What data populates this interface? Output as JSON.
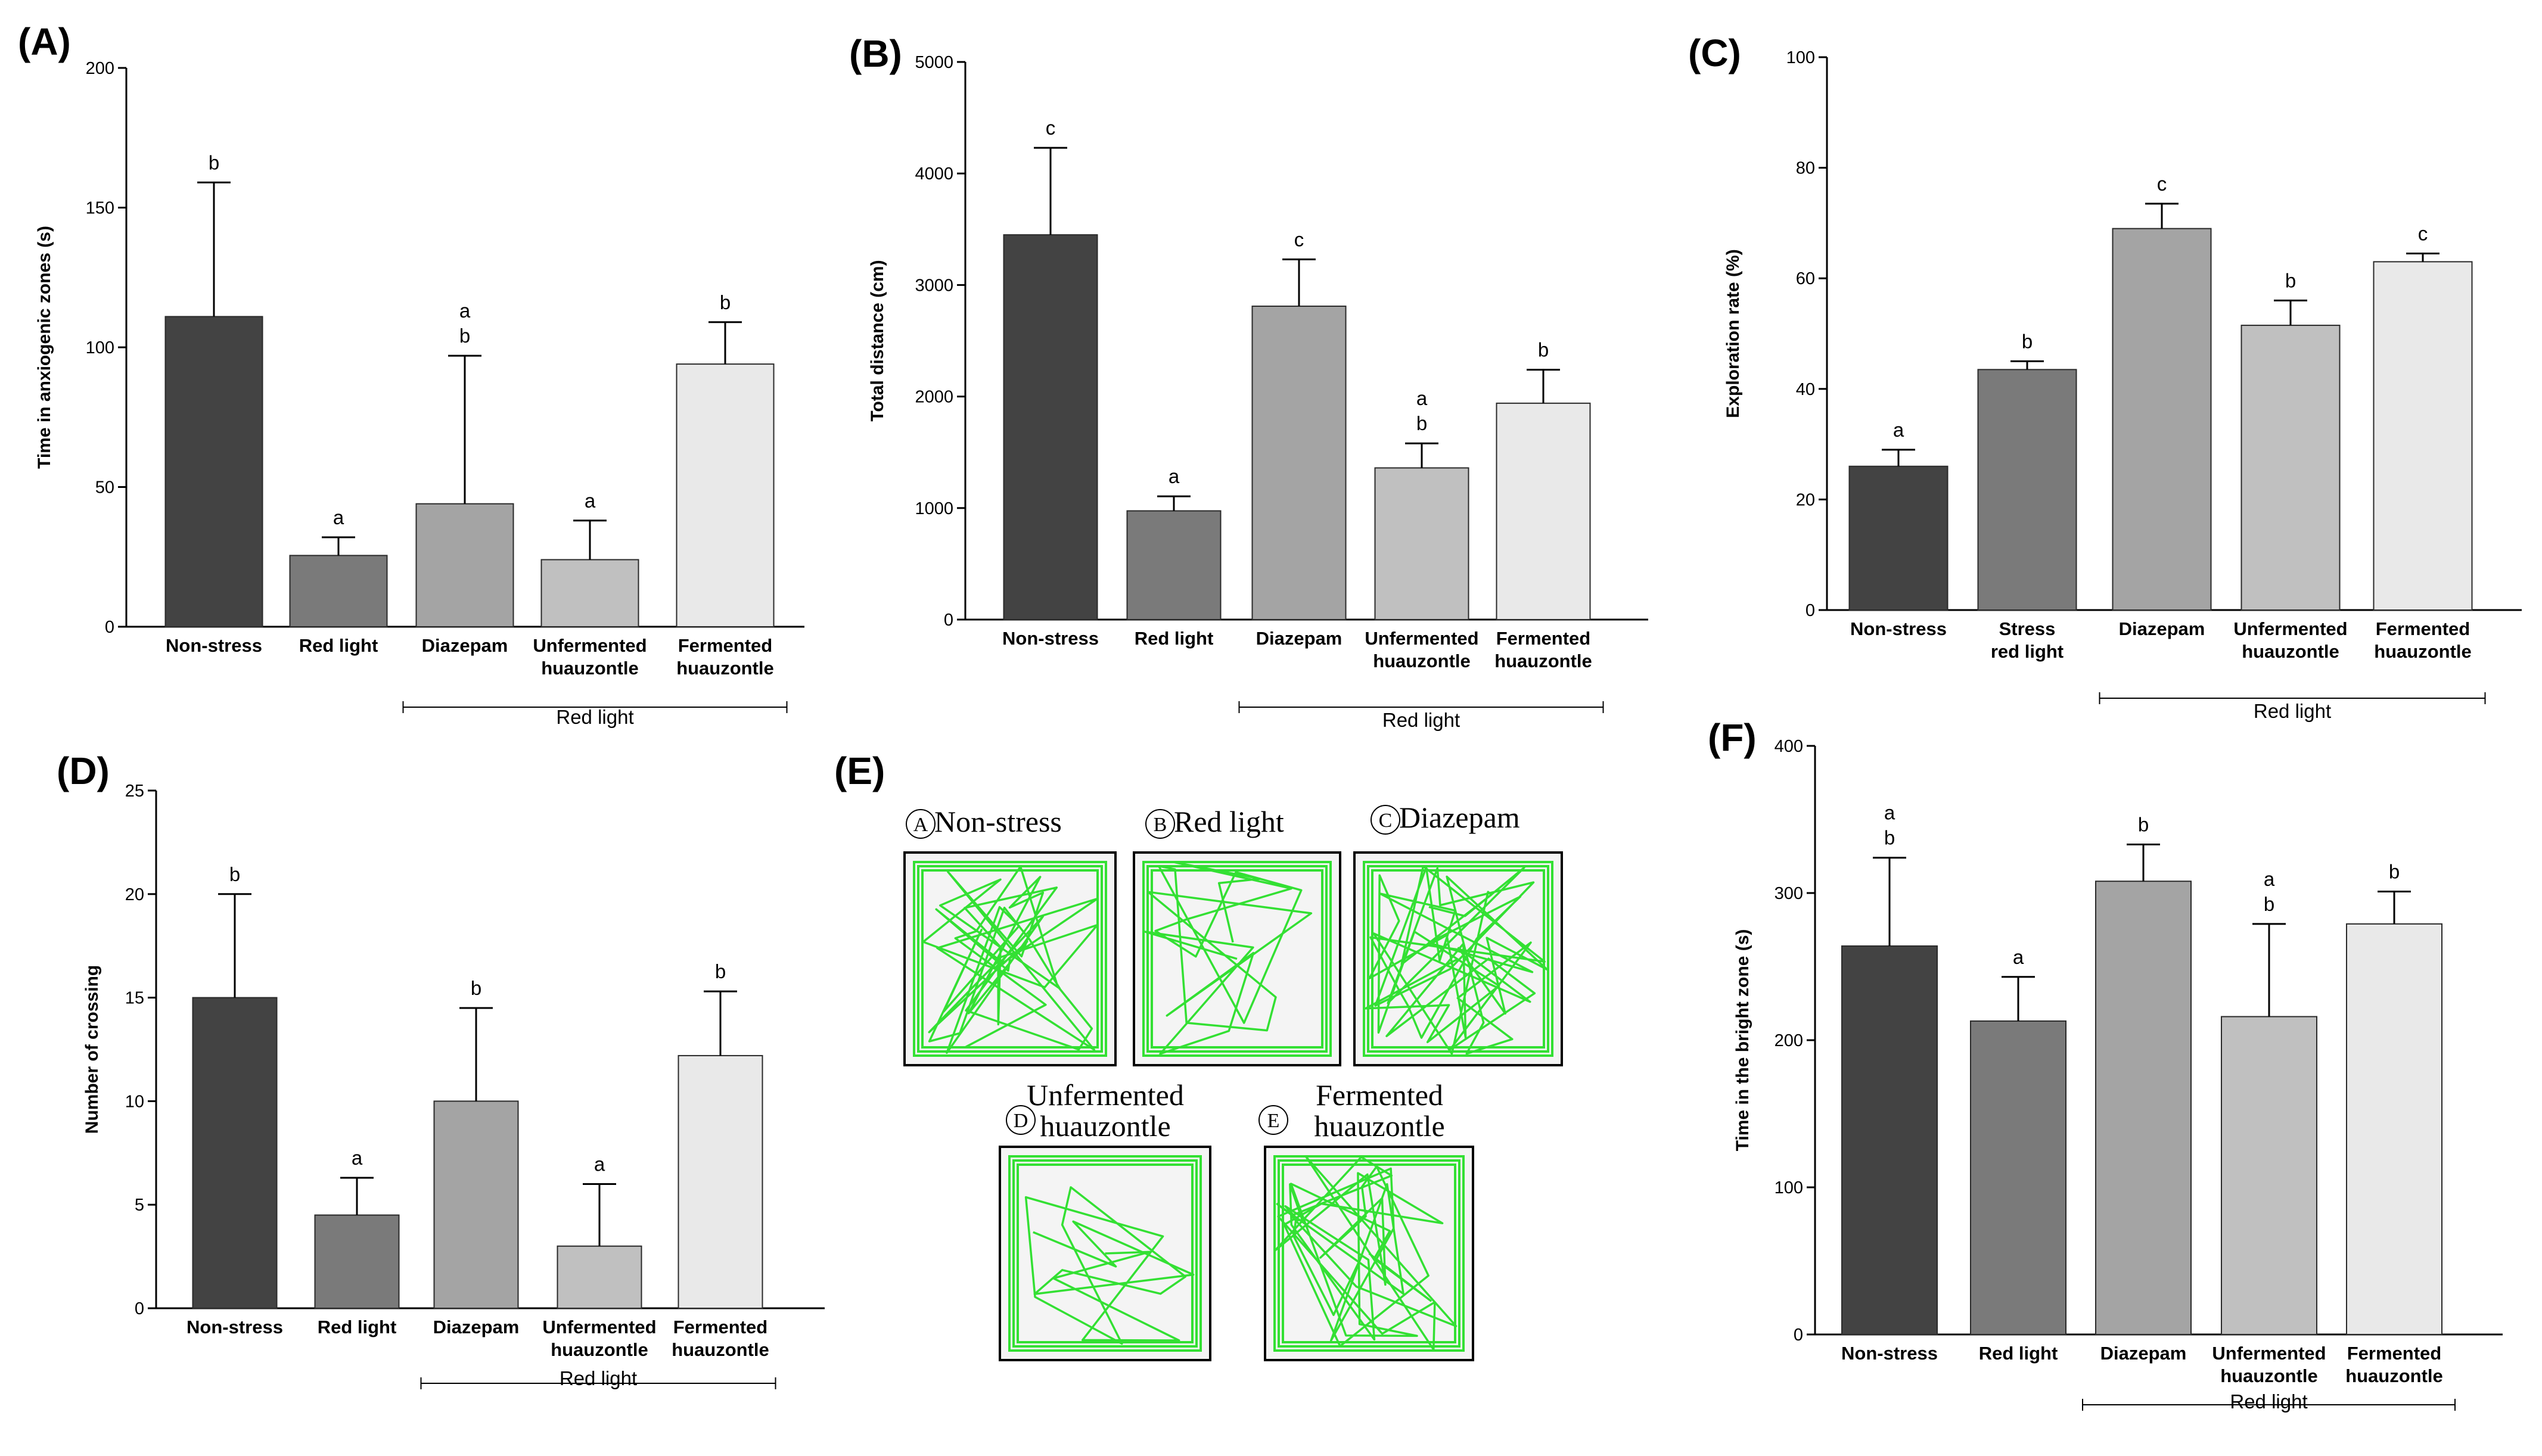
{
  "figure": {
    "colors": {
      "Non-stress": "#434343",
      "Red light": "#7a7a7a",
      "Stress red light": "#7a7a7a",
      "Diazepam": "#a4a4a4",
      "Unfermented huauzontle": "#c0c0c0",
      "Fermented huauzontle": "#e9e9e9",
      "track": "#33e033",
      "axis": "#000000"
    }
  },
  "chart_data": [
    {
      "id": "A",
      "panel_label": "(A)",
      "type": "bar",
      "ylabel": "Time in anxiogenic zones (s)",
      "ylim": [
        0,
        200
      ],
      "yticks": [
        0,
        50,
        100,
        150,
        200
      ],
      "categories": [
        [
          "Non-stress"
        ],
        [
          "Red light"
        ],
        [
          "Diazepam"
        ],
        [
          "Unfermented",
          "huauzontle"
        ],
        [
          "Fermented",
          "huauzontle"
        ]
      ],
      "series_keys": [
        "Non-stress",
        "Red light",
        "Diazepam",
        "Unfermented huauzontle",
        "Fermented huauzontle"
      ],
      "values": [
        111,
        25.5,
        44,
        24,
        94
      ],
      "errors": [
        48,
        6.5,
        53,
        14,
        15
      ],
      "letters": [
        [
          "b"
        ],
        [
          "a"
        ],
        [
          "a",
          "b"
        ],
        [
          "a"
        ],
        [
          "b"
        ]
      ],
      "group_label": "Red light",
      "group_span": [
        2,
        4
      ]
    },
    {
      "id": "B",
      "panel_label": "(B)",
      "type": "bar",
      "ylabel": "Total distance (cm)",
      "ylim": [
        0,
        5000
      ],
      "yticks": [
        0,
        1000,
        2000,
        3000,
        4000,
        5000
      ],
      "categories": [
        [
          "Non-stress"
        ],
        [
          "Red light"
        ],
        [
          "Diazepam"
        ],
        [
          "Unfermented",
          "huauzontle"
        ],
        [
          "Fermented",
          "huauzontle"
        ]
      ],
      "series_keys": [
        "Non-stress",
        "Red light",
        "Diazepam",
        "Unfermented huauzontle",
        "Fermented huauzontle"
      ],
      "values": [
        3450,
        975,
        2810,
        1360,
        1940
      ],
      "errors": [
        780,
        130,
        420,
        220,
        300
      ],
      "letters": [
        [
          "c"
        ],
        [
          "a"
        ],
        [
          "c"
        ],
        [
          "a",
          "b"
        ],
        [
          "b"
        ]
      ],
      "group_label": "Red light",
      "group_span": [
        2,
        4
      ]
    },
    {
      "id": "C",
      "panel_label": "(C)",
      "type": "bar",
      "ylabel": "Exploration rate (%)",
      "ylim": [
        0,
        100
      ],
      "yticks": [
        0,
        20,
        40,
        60,
        80,
        100
      ],
      "categories": [
        [
          "Non-stress"
        ],
        [
          "Stress",
          "red light"
        ],
        [
          "Diazepam"
        ],
        [
          "Unfermented",
          "huauzontle"
        ],
        [
          "Fermented",
          "huauzontle"
        ]
      ],
      "series_keys": [
        "Non-stress",
        "Stress red light",
        "Diazepam",
        "Unfermented huauzontle",
        "Fermented huauzontle"
      ],
      "values": [
        26,
        43.5,
        69,
        51.5,
        63
      ],
      "errors": [
        3,
        1.5,
        4.5,
        4.5,
        1.5
      ],
      "letters": [
        [
          "a"
        ],
        [
          "b"
        ],
        [
          "c"
        ],
        [
          "b"
        ],
        [
          "c"
        ]
      ],
      "group_label": "Red light",
      "group_span": [
        2,
        4
      ]
    },
    {
      "id": "D",
      "panel_label": "(D)",
      "type": "bar",
      "ylabel": "Number of crossing",
      "ylim": [
        0,
        25
      ],
      "yticks": [
        0,
        5,
        10,
        15,
        20,
        25
      ],
      "categories": [
        [
          "Non-stress"
        ],
        [
          "Red light"
        ],
        [
          "Diazepam"
        ],
        [
          "Unfermented",
          "huauzontle"
        ],
        [
          "Fermented",
          "huauzontle"
        ]
      ],
      "series_keys": [
        "Non-stress",
        "Red light",
        "Diazepam",
        "Unfermented huauzontle",
        "Fermented huauzontle"
      ],
      "values": [
        15,
        4.5,
        10,
        3,
        12.2
      ],
      "errors": [
        5,
        1.8,
        4.5,
        3,
        3.1
      ],
      "letters": [
        [
          "b"
        ],
        [
          "a"
        ],
        [
          "b"
        ],
        [
          "a"
        ],
        [
          "b"
        ]
      ],
      "group_label": "Red light",
      "group_span": [
        2,
        4
      ]
    },
    {
      "id": "F",
      "panel_label": "(F)",
      "type": "bar",
      "ylabel": "Time in the bright  zone (s)",
      "ylim": [
        0,
        400
      ],
      "yticks": [
        0,
        100,
        200,
        300,
        400
      ],
      "categories": [
        [
          "Non-stress"
        ],
        [
          "Red light"
        ],
        [
          "Diazepam"
        ],
        [
          "Unfermented",
          "huauzontle"
        ],
        [
          "Fermented",
          "huauzontle"
        ]
      ],
      "series_keys": [
        "Non-stress",
        "Red light",
        "Diazepam",
        "Unfermented huauzontle",
        "Fermented huauzontle"
      ],
      "values": [
        264,
        213,
        308,
        216,
        279
      ],
      "errors": [
        60,
        30,
        25,
        63,
        22
      ],
      "letters": [
        [
          "a",
          "b"
        ],
        [
          "a"
        ],
        [
          "b"
        ],
        [
          "a",
          "b"
        ],
        [
          "b"
        ]
      ],
      "group_label": "Red light",
      "group_span": [
        2,
        4
      ]
    }
  ],
  "track_panel": {
    "panel_label": "(E)",
    "mazes": [
      {
        "letter": "A",
        "label": [
          "Non-stress"
        ],
        "density": 45
      },
      {
        "letter": "B",
        "label": [
          "Red light"
        ],
        "density": 24
      },
      {
        "letter": "C",
        "label": [
          "Diazepam"
        ],
        "density": 55
      },
      {
        "letter": "D",
        "label": [
          "Unfermented",
          "huauzontle"
        ],
        "density": 18
      },
      {
        "letter": "E",
        "label": [
          "Fermented",
          "huauzontle"
        ],
        "density": 48
      }
    ]
  }
}
